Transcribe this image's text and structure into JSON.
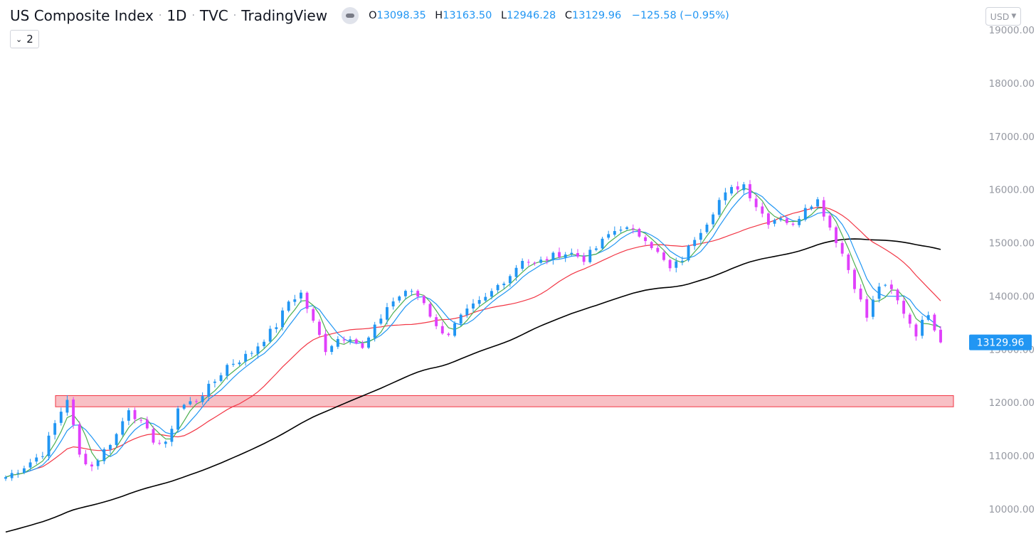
{
  "header": {
    "symbol_name": "US Composite Index",
    "interval": "1D",
    "source": "TVC",
    "provider": "TradingView",
    "ohlc": {
      "open_label": "O",
      "open": "13098.35",
      "high_label": "H",
      "high": "13163.50",
      "low_label": "L",
      "low": "12946.28",
      "close_label": "C",
      "close": "13129.96",
      "change": "−125.58 (−0.95%)"
    },
    "indicator_count": "2",
    "currency": "USD"
  },
  "colors": {
    "up_candle": "#2196f3",
    "down_candle": "#e040fb",
    "ma_fast": "#4caf50",
    "ma_mid": "#2196f3",
    "ma_slow": "#f23645",
    "ma_long": "#000000",
    "zone_fill": "#f7b5bb",
    "zone_border": "#f23645",
    "price_tag": "#2196f3"
  },
  "chart_data": {
    "type": "candlestick",
    "y_axis": {
      "ticks": [
        "10000.00",
        "11000.00",
        "12000.00",
        "13000.00",
        "14000.00",
        "15000.00",
        "16000.00",
        "17000.00",
        "18000.00",
        "19000.00"
      ],
      "range": [
        9500,
        19500
      ],
      "position": "right"
    },
    "last_price": "13129.96",
    "last_price_value": 13129.96,
    "support_zone": [
      11920,
      12130
    ],
    "trend_path": [
      [
        0,
        10600
      ],
      [
        3,
        10800
      ],
      [
        6,
        11050
      ],
      [
        8,
        11600
      ],
      [
        10,
        12080
      ],
      [
        12,
        11000
      ],
      [
        14,
        10800
      ],
      [
        16,
        11100
      ],
      [
        18,
        11400
      ],
      [
        20,
        11900
      ],
      [
        22,
        11600
      ],
      [
        24,
        11300
      ],
      [
        26,
        11200
      ],
      [
        28,
        11900
      ],
      [
        31,
        12050
      ],
      [
        34,
        12400
      ],
      [
        36,
        12700
      ],
      [
        38,
        12800
      ],
      [
        40,
        12950
      ],
      [
        42,
        13200
      ],
      [
        44,
        13450
      ],
      [
        46,
        13900
      ],
      [
        48,
        14050
      ],
      [
        50,
        13500
      ],
      [
        52,
        13000
      ],
      [
        54,
        13200
      ],
      [
        56,
        13250
      ],
      [
        58,
        13000
      ],
      [
        60,
        13400
      ],
      [
        62,
        13800
      ],
      [
        64,
        14000
      ],
      [
        66,
        14100
      ],
      [
        68,
        13900
      ],
      [
        70,
        13400
      ],
      [
        72,
        13300
      ],
      [
        74,
        13600
      ],
      [
        76,
        13800
      ],
      [
        78,
        13950
      ],
      [
        80,
        14200
      ],
      [
        82,
        14400
      ],
      [
        84,
        14700
      ],
      [
        86,
        14600
      ],
      [
        88,
        14700
      ],
      [
        90,
        14800
      ],
      [
        92,
        14800
      ],
      [
        94,
        14700
      ],
      [
        96,
        14900
      ],
      [
        98,
        15150
      ],
      [
        100,
        15300
      ],
      [
        102,
        15200
      ],
      [
        104,
        15100
      ],
      [
        106,
        14800
      ],
      [
        108,
        14500
      ],
      [
        110,
        14700
      ],
      [
        112,
        15100
      ],
      [
        114,
        15400
      ],
      [
        116,
        15800
      ],
      [
        118,
        16000
      ],
      [
        120,
        16100
      ],
      [
        122,
        15700
      ],
      [
        124,
        15400
      ],
      [
        126,
        15500
      ],
      [
        128,
        15300
      ],
      [
        130,
        15700
      ],
      [
        132,
        15800
      ],
      [
        134,
        15300
      ],
      [
        136,
        14800
      ],
      [
        138,
        14200
      ],
      [
        140,
        13600
      ],
      [
        142,
        14200
      ],
      [
        144,
        14100
      ],
      [
        146,
        13700
      ],
      [
        148,
        13300
      ],
      [
        150,
        13700
      ],
      [
        152,
        13129.96
      ]
    ]
  }
}
